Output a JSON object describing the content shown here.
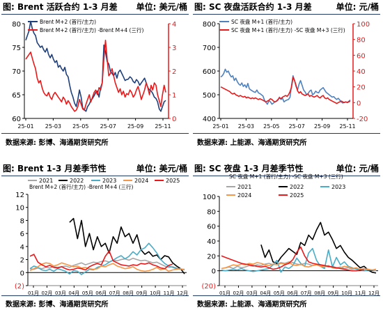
{
  "panels": [
    {
      "title": "图: Brent 活跃合约 1-3 月差",
      "unit": "单位: 美元/桶",
      "source": "数据来源: 彭博、海通期货研究所"
    },
    {
      "title": "图: SC 夜盘活跃合约 1-3 月差",
      "unit": "单位: 元/桶",
      "source": "数据来源: 上能源、海通期货研究所"
    },
    {
      "title": "图: Brent 1-3 月差季节性",
      "unit": "单位: 美元/桶",
      "source": "数据来源: 彭博、海通期货研究所"
    },
    {
      "title": "图: SC 夜盘 1-3 月差季节性",
      "unit": "单位: 元/桶",
      "source": "数据来源: 上能源、海通期货研究所"
    }
  ],
  "colors": {
    "navy": "#1f3f7a",
    "red": "#e8191a",
    "lightblue": "#4f81bd",
    "y2021": "#a6a6a6",
    "y2022": "#000000",
    "y2023": "#4bacc6",
    "y2024": "#f79646",
    "y2025": "#e8191a"
  },
  "chart_data": [
    {
      "type": "line",
      "dual_axis": true,
      "x_ticks": [
        "25-01",
        "25-03",
        "25-05",
        "25-07",
        "25-09",
        "25-11"
      ],
      "y_left": {
        "ticks": [
          "60",
          "65",
          "70",
          "75",
          "80"
        ],
        "lim": [
          60,
          80
        ]
      },
      "y_right": {
        "ticks": [
          "0",
          "1",
          "2",
          "3",
          "4"
        ],
        "lim": [
          0,
          4
        ]
      },
      "series": [
        {
          "name": "Brent M+2 (首行/主力)",
          "axis": "left",
          "color": "navy",
          "values": [
            76.5,
            77.5,
            78.5,
            80.5,
            79,
            78,
            77.5,
            76,
            75.5,
            75,
            75.3,
            74.5,
            74,
            74.8,
            73.5,
            72.8,
            73.5,
            72.5,
            71.8,
            72.2,
            70.8,
            71.2,
            70.5,
            70,
            70.8,
            69.3,
            68.8,
            67,
            65.5,
            64.5,
            63.2,
            62.5,
            64,
            66,
            64.5,
            62.2,
            61.8,
            61.5,
            62.5,
            63,
            63.8,
            64.2,
            64.8,
            65.5,
            65.8,
            64.5,
            66.5,
            67.5,
            75.5,
            74,
            72,
            71.5,
            70,
            69.5,
            69,
            69.7,
            68.5,
            69.8,
            70.2,
            69.5,
            68.8,
            68,
            68.2,
            68.3,
            68.8,
            68.5,
            67.8,
            67.5,
            68.2,
            67.8,
            67,
            67.5,
            68,
            68.5,
            67.5,
            66.5,
            66,
            65.8,
            65.3,
            64.5,
            64.2,
            63.5,
            62,
            61.5,
            62.5,
            63.5,
            63.8
          ]
        },
        {
          "name": "Brent M+2 (首行/主力) -Brent M+4 (三行)",
          "axis": "right",
          "color": "red",
          "values": [
            2.5,
            2.6,
            2.7,
            2.8,
            2.55,
            2.3,
            2.1,
            1.7,
            1.5,
            1.6,
            1.3,
            1.1,
            1.0,
            0.95,
            1.1,
            0.9,
            0.8,
            1.0,
            1.1,
            1.0,
            0.9,
            0.8,
            0.7,
            0.9,
            0.8,
            0.6,
            0.75,
            0.65,
            0.5,
            0.4,
            0.3,
            0.35,
            0.5,
            0.8,
            0.6,
            0.4,
            0.35,
            0.6,
            0.8,
            1.0,
            0.7,
            0.9,
            1.1,
            1.2,
            1.0,
            1.3,
            1.2,
            1.5,
            2.5,
            3.3,
            2.5,
            1.8,
            1.9,
            2.1,
            1.8,
            1.5,
            1.3,
            1.1,
            1.25,
            1.0,
            1.15,
            0.9,
            1.05,
            1.0,
            1.2,
            1.1,
            0.9,
            1.0,
            1.2,
            1.35,
            1.1,
            0.8,
            1.0,
            1.2,
            1.5,
            1.3,
            1.0,
            1.4,
            1.2,
            1.5,
            1.4,
            1.0,
            0.75,
            0.5,
            1.0,
            1.4,
            1.1
          ]
        }
      ]
    },
    {
      "type": "line",
      "dual_axis": true,
      "x_ticks": [
        "25-01",
        "25-03",
        "25-05",
        "25-07",
        "25-09",
        "25-11"
      ],
      "y_left": {
        "ticks": [
          "400",
          "500",
          "600",
          "700",
          "800"
        ],
        "lim": [
          400,
          800
        ]
      },
      "y_right": {
        "ticks": [
          "-20",
          "0",
          "20",
          "40",
          "60",
          "80",
          "100"
        ],
        "lim": [
          -20,
          100
        ]
      },
      "series": [
        {
          "name": "SC 夜盘 M+1 (首行/主力)",
          "axis": "left",
          "color": "lightblue",
          "values": [
            575,
            580,
            590,
            608,
            595,
            600,
            585,
            575,
            580,
            560,
            570,
            555,
            545,
            540,
            550,
            535,
            542,
            530,
            548,
            525,
            520,
            516,
            512,
            510,
            520,
            508,
            505,
            500,
            495,
            478,
            468,
            460,
            475,
            470,
            460,
            465,
            470,
            472,
            478,
            490,
            480,
            485,
            470,
            475,
            478,
            480,
            490,
            540,
            580,
            560,
            535,
            520,
            545,
            560,
            540,
            520,
            512,
            500,
            505,
            515,
            520,
            500,
            505,
            515,
            510,
            508,
            520,
            525,
            530,
            520,
            510,
            505,
            500,
            495,
            490,
            492,
            485,
            480,
            485,
            478,
            470,
            465,
            468,
            470,
            468,
            472,
            478
          ]
        },
        {
          "name": "SC 夜盘 M+1 (首行/主力) -SC 夜盘 M+3 (三行)",
          "axis": "right",
          "color": "red",
          "values": [
            20,
            19,
            18,
            17,
            16,
            15,
            14,
            12,
            11,
            12,
            10,
            9,
            8,
            9,
            8,
            7,
            8,
            6,
            7,
            6,
            5,
            6,
            5,
            6,
            5,
            4,
            5,
            4,
            3,
            2,
            1,
            2,
            3,
            5,
            4,
            2,
            1,
            2,
            4,
            6,
            5,
            7,
            8,
            9,
            8,
            10,
            14,
            20,
            32,
            28,
            22,
            15,
            12,
            14,
            11,
            10,
            9,
            10,
            11,
            8,
            9,
            8,
            7,
            8,
            9,
            7,
            6,
            8,
            9,
            6,
            5,
            6,
            4,
            3,
            2,
            1,
            0,
            -1,
            0,
            1,
            2,
            1,
            0,
            1,
            0,
            1,
            2
          ]
        }
      ]
    },
    {
      "type": "line",
      "x_ticks": [
        "01月",
        "02月",
        "03月",
        "04月",
        "05月",
        "06月",
        "07月",
        "08月",
        "09月",
        "10月",
        "11月",
        "12月"
      ],
      "y": {
        "ticks": [
          "(2)",
          "0",
          "2",
          "4",
          "6",
          "8",
          "10",
          "12"
        ],
        "lim": [
          -2,
          12
        ]
      },
      "legend_title": "Brent M+2 (首行/主力) -Brent M+4 (三行)",
      "series": [
        {
          "name": "2021",
          "color": "y2021",
          "values": [
            0.6,
            0.5,
            0.7,
            0.6,
            0.8,
            0.7,
            0.9,
            0.8,
            0.9,
            1.0,
            0.8,
            1.1,
            1.3,
            1.5,
            1.2,
            1.4,
            1.6,
            1.5,
            1.7,
            1.8,
            1.6,
            1.9,
            1.8,
            2.0,
            2.1,
            1.9,
            2.2,
            2.0,
            1.8,
            1.9,
            1.7,
            1.5,
            1.6,
            1.3,
            1.0,
            0.8,
            0.9,
            0.7,
            0.5,
            0.4
          ]
        },
        {
          "name": "2022",
          "color": "y2022",
          "values": [
            null,
            null,
            null,
            null,
            null,
            null,
            null,
            null,
            null,
            null,
            7.7,
            8.3,
            5.2,
            8.0,
            4.0,
            6.0,
            3.5,
            5.5,
            4.0,
            4.5,
            3.0,
            5.5,
            4.5,
            7.0,
            5.5,
            6.0,
            4.5,
            5.8,
            3.5,
            2.8,
            3.2,
            2.5,
            2.7,
            2.0,
            2.6,
            2.4,
            1.5,
            1.0,
            0.6,
            -0.2
          ]
        },
        {
          "name": "2023",
          "color": "y2023",
          "values": [
            0.6,
            1.0,
            0.8,
            0.4,
            0.3,
            0.5,
            0.2,
            0.6,
            0.4,
            0.2,
            -0.2,
            0.3,
            0.2,
            -0.3,
            0.1,
            0.5,
            0.4,
            0.8,
            1.0,
            1.2,
            1.6,
            1.9,
            2.3,
            2.6,
            2.1,
            2.5,
            3.2,
            2.7,
            3.5,
            3.8,
            4.5,
            3.8,
            3.0,
            2.0,
            1.4,
            1.0,
            0.8,
            0.6,
            0.5,
            0.5
          ]
        },
        {
          "name": "2024",
          "color": "y2024",
          "values": [
            0.3,
            0.6,
            0.9,
            1.3,
            1.5,
            1.4,
            1.0,
            1.2,
            1.5,
            1.3,
            1.1,
            0.9,
            1.0,
            0.7,
            0.8,
            0.6,
            0.5,
            0.6,
            1.0,
            0.9,
            1.2,
            1.4,
            1.0,
            0.8,
            0.6,
            0.7,
            0.9,
            0.5,
            0.3,
            0.2,
            0.3,
            0.5,
            0.8,
            0.4,
            0.6,
            0.2,
            0.4,
            0.5,
            0.6,
            0.4
          ]
        },
        {
          "name": "2025",
          "color": "y2025",
          "values": [
            2.5,
            2.8,
            1.6,
            1.2,
            0.9,
            1.1,
            0.8,
            0.7,
            0.9,
            0.6,
            0.4,
            0.5,
            0.7,
            0.6,
            0.4,
            0.9,
            1.2,
            1.4,
            1.2,
            2.5,
            3.3,
            1.8,
            1.5,
            1.2,
            1.1,
            1.0,
            1.2,
            1.1,
            1.4,
            1.3,
            1.5,
            1.2,
            1.0,
            0.7,
            0.6,
            1.1,
            1.3,
            null,
            null,
            null
          ]
        }
      ]
    },
    {
      "type": "line",
      "x_ticks": [
        "01月",
        "02月",
        "03月",
        "04月",
        "05月",
        "06月",
        "07月",
        "08月",
        "09月",
        "10月",
        "11月",
        "12月"
      ],
      "y": {
        "ticks": [
          "(20)",
          "0",
          "20",
          "40",
          "60",
          "80",
          "100"
        ],
        "lim": [
          -20,
          100
        ]
      },
      "legend_title": "SC 夜盘 M+1 (首行/主力) -SC 夜盘 M+3 (三行)",
      "series": [
        {
          "name": "2021",
          "color": "y2021",
          "values": [
            3,
            4,
            5,
            3,
            6,
            4,
            5,
            7,
            6,
            8,
            7,
            9,
            10,
            8,
            9,
            11,
            10,
            12,
            11,
            9,
            8,
            10,
            9,
            7,
            8,
            6,
            7,
            5,
            6,
            4,
            5,
            3,
            4,
            2,
            3,
            2,
            1,
            2,
            1,
            0
          ]
        },
        {
          "name": "2022",
          "color": "y2022",
          "values": [
            null,
            null,
            null,
            null,
            null,
            null,
            null,
            null,
            null,
            null,
            35,
            18,
            28,
            12,
            10,
            18,
            24,
            30,
            26,
            22,
            38,
            34,
            48,
            42,
            55,
            65,
            48,
            52,
            42,
            30,
            34,
            25,
            18,
            14,
            9,
            4,
            6,
            1,
            -2,
            -3
          ]
        },
        {
          "name": "2023",
          "color": "y2023",
          "values": [
            1,
            0,
            1,
            2,
            1,
            3,
            1,
            0,
            -1,
            0,
            1,
            2,
            3,
            8,
            14,
            -2,
            5,
            3,
            7,
            17,
            10,
            6,
            24,
            30,
            14,
            6,
            3,
            28,
            5,
            18,
            8,
            12,
            6,
            4,
            2,
            1,
            0,
            1,
            1,
            2
          ]
        },
        {
          "name": "2024",
          "color": "y2024",
          "values": [
            3,
            4,
            6,
            8,
            7,
            9,
            8,
            10,
            9,
            11,
            10,
            8,
            7,
            9,
            8,
            10,
            9,
            11,
            8,
            7,
            9,
            6,
            5,
            7,
            8,
            6,
            5,
            7,
            4,
            3,
            4,
            6,
            5,
            3,
            4,
            2,
            3,
            2,
            1,
            2
          ]
        },
        {
          "name": "2025",
          "color": "y2025",
          "values": [
            20,
            18,
            16,
            14,
            12,
            10,
            9,
            8,
            7,
            6,
            5,
            6,
            4,
            2,
            3,
            5,
            8,
            10,
            15,
            25,
            32,
            20,
            12,
            10,
            9,
            8,
            7,
            6,
            5,
            4,
            3,
            2,
            1,
            0,
            0,
            1,
            1,
            null,
            null,
            null
          ]
        }
      ]
    }
  ]
}
